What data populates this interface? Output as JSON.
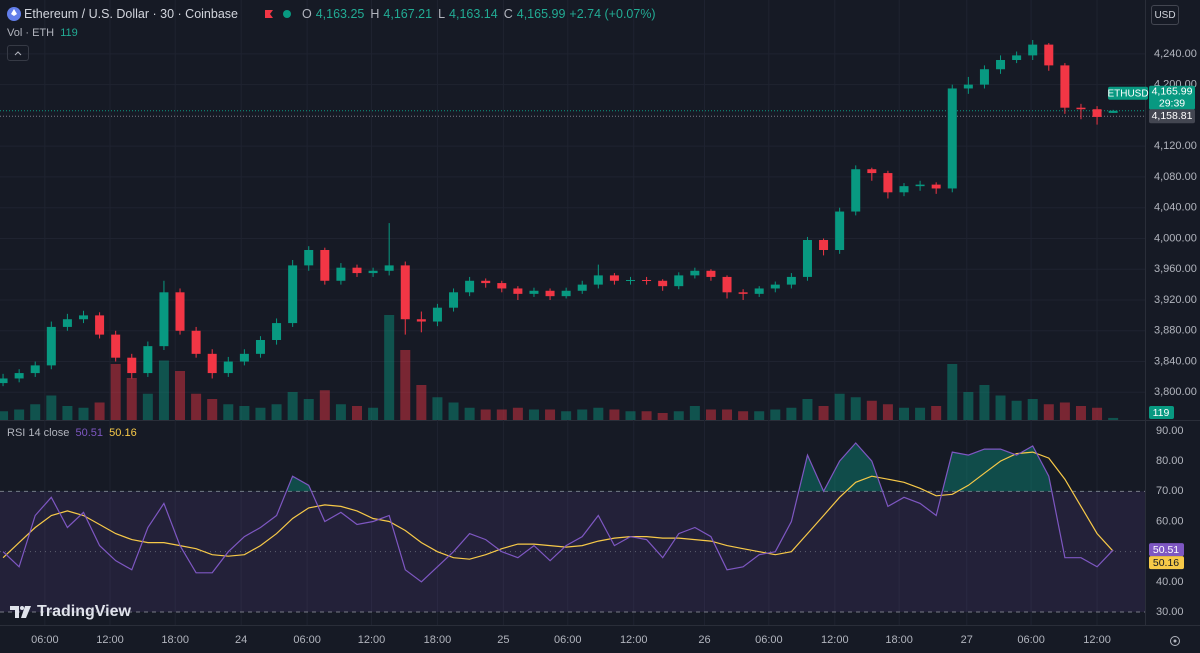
{
  "header": {
    "symbol": "Ethereum / U.S. Dollar · 30 · Coinbase",
    "ohlc": [
      {
        "key": "O",
        "value": "4,163.25"
      },
      {
        "key": "H",
        "value": "4,167.21"
      },
      {
        "key": "L",
        "value": "4,163.14"
      },
      {
        "key": "C",
        "value": "4,165.99"
      }
    ],
    "change": "+2.74 (+0.07%)"
  },
  "currency": "USD",
  "watermark": "TradingView",
  "chart_data": {
    "type": "candlestick",
    "up_color": "#089981",
    "down_color": "#f23645",
    "x": [
      0,
      1,
      2,
      3,
      4,
      5,
      6,
      7,
      8,
      9,
      10,
      11,
      12,
      13,
      14,
      15,
      16,
      17,
      18,
      19,
      20,
      21,
      22,
      23,
      24,
      25,
      26,
      27,
      28,
      29,
      30,
      31,
      32,
      33,
      34,
      35,
      36,
      37,
      38,
      39,
      40,
      41,
      42,
      43,
      44,
      45,
      46,
      47,
      48,
      49,
      50,
      51,
      52,
      53,
      54,
      55,
      56,
      57,
      58,
      59,
      60,
      61,
      62,
      63,
      64,
      65,
      66,
      67,
      68,
      69
    ],
    "open": [
      3812,
      3818,
      3825,
      3835,
      3885,
      3895,
      3900,
      3875,
      3845,
      3825,
      3860,
      3930,
      3880,
      3850,
      3825,
      3840,
      3850,
      3868,
      3890,
      3965,
      3985,
      3945,
      3962,
      3955,
      3958,
      3965,
      3895,
      3892,
      3910,
      3930,
      3945,
      3942,
      3935,
      3928,
      3932,
      3925,
      3932,
      3940,
      3952,
      3945,
      3946,
      3945,
      3938,
      3952,
      3958,
      3950,
      3930,
      3928,
      3935,
      3940,
      3950,
      3998,
      3985,
      4035,
      4090,
      4085,
      4060,
      4068,
      4070,
      4065,
      4195,
      4200,
      4220,
      4232,
      4238,
      4252,
      4225,
      4170,
      4168,
      4163.25
    ],
    "high": [
      3824,
      3830,
      3840,
      3892,
      3902,
      3906,
      3904,
      3880,
      3850,
      3866,
      3945,
      3935,
      3885,
      3856,
      3846,
      3856,
      3873,
      3896,
      3972,
      3990,
      3988,
      3968,
      3966,
      3962,
      4020,
      3970,
      3905,
      3915,
      3935,
      3950,
      3948,
      3945,
      3938,
      3936,
      3935,
      3936,
      3945,
      3966,
      3955,
      3950,
      3950,
      3947,
      3956,
      3962,
      3960,
      3952,
      3934,
      3938,
      3944,
      3955,
      4002,
      4000,
      4040,
      4095,
      4092,
      4088,
      4072,
      4075,
      4073,
      4200,
      4210,
      4225,
      4238,
      4243,
      4258,
      4254,
      4228,
      4175,
      4172,
      4167.21
    ],
    "low": [
      3808,
      3813,
      3820,
      3830,
      3880,
      3890,
      3870,
      3840,
      3818,
      3820,
      3855,
      3875,
      3845,
      3818,
      3820,
      3835,
      3845,
      3862,
      3885,
      3958,
      3940,
      3940,
      3950,
      3950,
      3952,
      3875,
      3878,
      3886,
      3905,
      3925,
      3936,
      3930,
      3920,
      3924,
      3920,
      3922,
      3928,
      3935,
      3940,
      3940,
      3940,
      3932,
      3934,
      3948,
      3945,
      3922,
      3920,
      3924,
      3930,
      3935,
      3945,
      3978,
      3980,
      4030,
      4075,
      4052,
      4055,
      4062,
      4058,
      4060,
      4188,
      4195,
      4214,
      4228,
      4232,
      4218,
      4162,
      4155,
      4148,
      4163.14
    ],
    "close": [
      3818,
      3825,
      3835,
      3885,
      3895,
      3900,
      3875,
      3845,
      3825,
      3860,
      3930,
      3880,
      3850,
      3825,
      3840,
      3850,
      3868,
      3890,
      3965,
      3985,
      3945,
      3962,
      3955,
      3958,
      3965,
      3895,
      3892,
      3910,
      3930,
      3945,
      3942,
      3935,
      3928,
      3932,
      3925,
      3932,
      3940,
      3952,
      3945,
      3946,
      3945,
      3938,
      3952,
      3958,
      3950,
      3930,
      3928,
      3935,
      3940,
      3950,
      3998,
      3985,
      4035,
      4090,
      4085,
      4060,
      4068,
      4070,
      4065,
      4195,
      4200,
      4220,
      4232,
      4238,
      4252,
      4225,
      4170,
      4168,
      4158,
      4165.99
    ],
    "xlim": [
      -0.19,
      70.98
    ],
    "xticks": [
      {
        "value": 2.6,
        "label": "06:00"
      },
      {
        "value": 6.65,
        "label": "12:00"
      },
      {
        "value": 10.7,
        "label": "18:00"
      },
      {
        "value": 14.8,
        "label": "24"
      },
      {
        "value": 18.9,
        "label": "06:00"
      },
      {
        "value": 22.9,
        "label": "12:00"
      },
      {
        "value": 27.0,
        "label": "18:00"
      },
      {
        "value": 31.1,
        "label": "25"
      },
      {
        "value": 35.1,
        "label": "06:00"
      },
      {
        "value": 39.2,
        "label": "12:00"
      },
      {
        "value": 43.6,
        "label": "26"
      },
      {
        "value": 47.6,
        "label": "06:00"
      },
      {
        "value": 51.7,
        "label": "12:00"
      },
      {
        "value": 55.7,
        "label": "18:00"
      },
      {
        "value": 59.9,
        "label": "27"
      },
      {
        "value": 63.9,
        "label": "06:00"
      },
      {
        "value": 68.0,
        "label": "12:00"
      }
    ],
    "ylim": [
      3764,
      4310
    ],
    "yticks": [
      {
        "value": 3800,
        "label": "3,800.00"
      },
      {
        "value": 3840,
        "label": "3,840.00"
      },
      {
        "value": 3880,
        "label": "3,880.00"
      },
      {
        "value": 3920,
        "label": "3,920.00"
      },
      {
        "value": 3960,
        "label": "3,960.00"
      },
      {
        "value": 4000,
        "label": "4,000.00"
      },
      {
        "value": 4040,
        "label": "4,040.00"
      },
      {
        "value": 4080,
        "label": "4,080.00"
      },
      {
        "value": 4120,
        "label": "4,120.00"
      },
      {
        "value": 4200,
        "label": "4,200.00"
      },
      {
        "value": 4240,
        "label": "4,240.00"
      }
    ],
    "grid": true,
    "last_price": {
      "symbol": "ETHUSD",
      "value": 4165.99,
      "label": "4,165.99",
      "countdown": "29:39"
    },
    "prev_price": {
      "value": 4158.81,
      "label": "4,158.81"
    },
    "volume": {
      "name": "Vol · ETH",
      "vlim": [
        0,
        24000
      ],
      "values": [
        500,
        600,
        900,
        1400,
        800,
        700,
        1000,
        3200,
        2400,
        1500,
        3400,
        2800,
        1500,
        1200,
        900,
        800,
        700,
        900,
        1600,
        1200,
        1700,
        900,
        800,
        700,
        6000,
        4000,
        2000,
        1300,
        1000,
        700,
        600,
        600,
        700,
        600,
        600,
        500,
        600,
        700,
        600,
        500,
        500,
        400,
        500,
        800,
        600,
        600,
        500,
        500,
        600,
        700,
        1200,
        800,
        1500,
        1300,
        1100,
        900,
        700,
        700,
        800,
        3200,
        1600,
        2000,
        1400,
        1100,
        1200,
        900,
        1000,
        800,
        700,
        119
      ]
    },
    "rsi": {
      "name": "RSI 14 close",
      "color": "#7e57c2",
      "ma_color": "#f7c948",
      "fill_color": "#089981",
      "ylim": [
        25.7,
        93.3
      ],
      "yticks": [
        {
          "value": 30,
          "label": "30.00"
        },
        {
          "value": 40,
          "label": "40.00"
        },
        {
          "value": 50,
          "label": "50.00"
        },
        {
          "value": 60,
          "label": "60.00"
        },
        {
          "value": 70,
          "label": "70.00"
        },
        {
          "value": 80,
          "label": "80.00"
        },
        {
          "value": 90,
          "label": "90.00"
        }
      ],
      "bands": [
        70,
        30
      ],
      "mid": 50,
      "values": [
        50,
        45,
        62,
        68,
        58,
        63,
        52,
        47,
        44,
        58,
        66,
        52,
        43,
        43,
        50,
        55,
        58,
        62,
        75,
        72,
        60,
        63,
        59,
        60,
        62,
        44,
        40,
        45,
        50,
        56,
        54,
        50,
        48,
        52,
        47,
        52,
        55,
        62,
        52,
        55,
        54,
        48,
        56,
        58,
        55,
        44,
        45,
        49,
        50,
        60,
        82,
        70,
        80,
        86,
        80,
        65,
        68,
        66,
        62,
        83,
        82,
        84,
        84,
        82,
        85,
        75,
        48,
        48,
        45,
        50.51
      ],
      "ma": [
        48,
        53,
        58,
        62,
        63.5,
        62,
        59,
        56,
        54,
        53,
        53,
        52,
        51,
        49,
        48.5,
        49,
        52,
        56,
        61,
        64.5,
        65.5,
        65,
        63.5,
        61,
        60,
        57,
        53,
        50,
        48,
        47.5,
        49,
        51,
        52.5,
        52.5,
        52,
        51.5,
        52,
        53.5,
        54.5,
        55,
        55,
        54.5,
        54.5,
        54,
        53.5,
        52,
        51,
        50,
        49,
        50,
        56,
        62,
        68,
        73,
        75,
        74,
        73,
        71,
        68.5,
        69,
        72,
        76,
        80,
        82.5,
        83,
        81,
        74,
        65,
        56,
        50.16
      ]
    }
  }
}
